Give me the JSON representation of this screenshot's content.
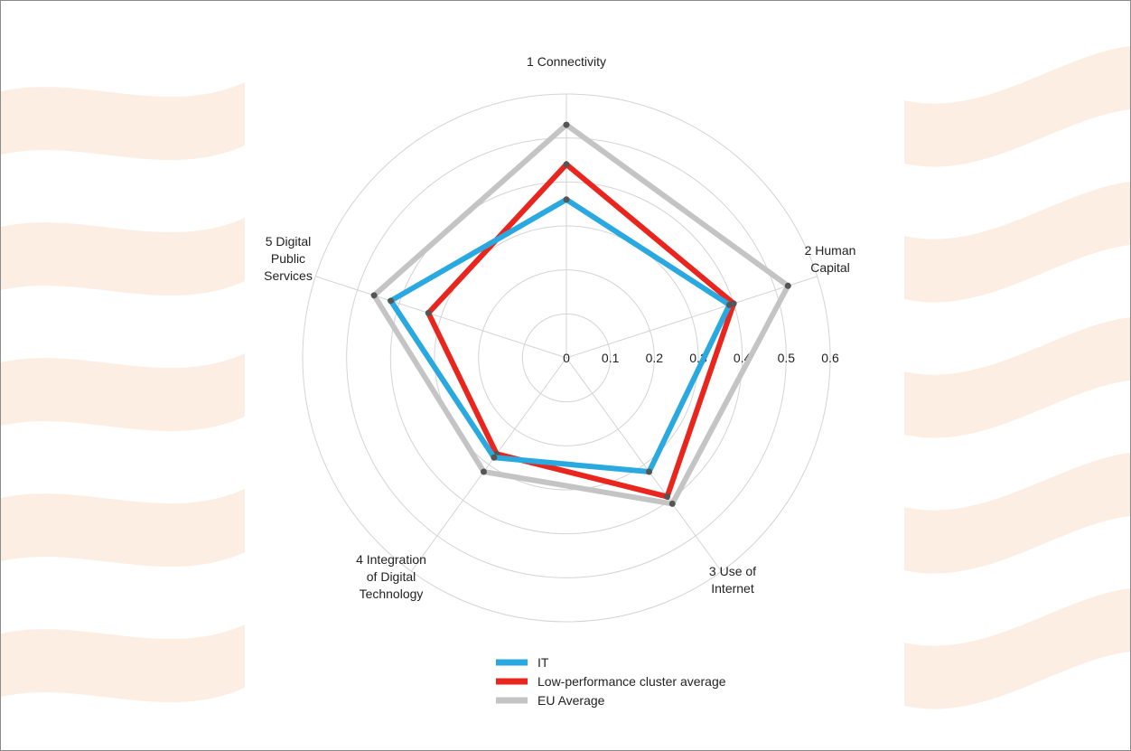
{
  "chart_data": {
    "type": "radar",
    "axes": [
      {
        "lines": [
          "1 Connectivity"
        ]
      },
      {
        "lines": [
          "2 Human",
          "Capital"
        ]
      },
      {
        "lines": [
          "3 Use of",
          "Internet"
        ]
      },
      {
        "lines": [
          "4 Integration",
          "of Digital",
          "Technology"
        ]
      },
      {
        "lines": [
          "5 Digital",
          "Public",
          "Services"
        ]
      }
    ],
    "tick_labels": [
      "0",
      "0.1",
      "0.2",
      "0.3",
      "0.4",
      "0.5",
      "0.6"
    ],
    "rlim": [
      0,
      0.6
    ],
    "grid": true,
    "legend_position": "bottom",
    "series": [
      {
        "name": "EU Average",
        "color": "#c4c4c4",
        "values": [
          0.53,
          0.53,
          0.41,
          0.32,
          0.46
        ]
      },
      {
        "name": "Low-performance cluster average",
        "color": "#e8261d",
        "values": [
          0.44,
          0.4,
          0.39,
          0.27,
          0.33
        ]
      },
      {
        "name": "IT",
        "color": "#2aa9e0",
        "values": [
          0.36,
          0.39,
          0.32,
          0.28,
          0.42
        ]
      }
    ],
    "legend_order": [
      "IT",
      "Low-performance cluster average",
      "EU Average"
    ],
    "vertex_marker_color": "#555555"
  },
  "background": {
    "left_band_color": "#fdeee4",
    "right_band_color": "#fdeee4"
  }
}
